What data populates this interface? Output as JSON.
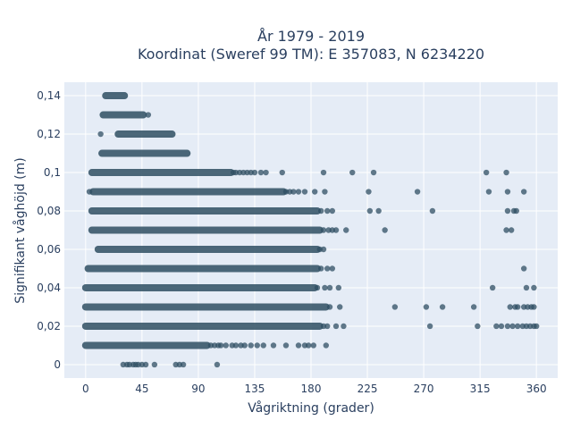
{
  "chart_data": {
    "type": "scatter",
    "title_lines": [
      "År 1979 - 2019",
      "Koordinat (Sweref 99 TM): E 357083, N 6234220"
    ],
    "xlabel": "Vågriktning (grader)",
    "ylabel": "Signifikant våghöjd (m)",
    "xlim": [
      -17,
      377
    ],
    "ylim": [
      -0.007,
      0.147
    ],
    "x_ticks": [
      0,
      45,
      90,
      135,
      180,
      225,
      270,
      315,
      360
    ],
    "x_tick_labels": [
      "0",
      "45",
      "90",
      "135",
      "180",
      "225",
      "270",
      "315",
      "360"
    ],
    "y_ticks": [
      0,
      0.02,
      0.04,
      0.06,
      0.08,
      0.1,
      0.12,
      0.14
    ],
    "y_tick_labels": [
      "0",
      "0,02",
      "0,04",
      "0,06",
      "0,08",
      "0,1",
      "0,12",
      "0,14"
    ],
    "grid": true,
    "marker_color": "#2f4f63",
    "background_color": "#e5ecf6",
    "bands": [
      {
        "y": 0.14,
        "segments": [
          [
            16,
            31
          ]
        ],
        "points": []
      },
      {
        "y": 0.13,
        "segments": [
          [
            14,
            46
          ]
        ],
        "points": [
          50
        ]
      },
      {
        "y": 0.12,
        "segments": [
          [
            26,
            69
          ]
        ],
        "points": [
          12
        ]
      },
      {
        "y": 0.11,
        "segments": [
          [
            13,
            81
          ]
        ],
        "points": []
      },
      {
        "y": 0.1,
        "segments": [
          [
            5,
            116
          ]
        ],
        "points": [
          118,
          120,
          123,
          126,
          129,
          132,
          135,
          140,
          144,
          157,
          190,
          213,
          230,
          320,
          336
        ]
      },
      {
        "y": 0.09,
        "segments": [
          [
            6,
            158
          ]
        ],
        "points": [
          3,
          160,
          163,
          166,
          170,
          175,
          183,
          191,
          226,
          265,
          322,
          337,
          350
        ]
      },
      {
        "y": 0.08,
        "segments": [
          [
            5,
            185
          ]
        ],
        "points": [
          188,
          193,
          197,
          227,
          234,
          277,
          337,
          342,
          344
        ]
      },
      {
        "y": 0.07,
        "segments": [
          [
            5,
            187
          ]
        ],
        "points": [
          190,
          194,
          197,
          200,
          208,
          239,
          336,
          340
        ]
      },
      {
        "y": 0.06,
        "segments": [
          [
            10,
            185
          ]
        ],
        "points": [
          187,
          190
        ]
      },
      {
        "y": 0.05,
        "segments": [
          [
            2,
            185
          ]
        ],
        "points": [
          188,
          193,
          197,
          350
        ]
      },
      {
        "y": 0.04,
        "segments": [
          [
            0,
            183
          ]
        ],
        "points": [
          185,
          191,
          195,
          202,
          325,
          352,
          358
        ]
      },
      {
        "y": 0.03,
        "segments": [
          [
            0,
            192
          ]
        ],
        "points": [
          195,
          203,
          247,
          272,
          285,
          310,
          339,
          343,
          345,
          350,
          353,
          356,
          358
        ]
      },
      {
        "y": 0.02,
        "segments": [
          [
            0,
            187
          ]
        ],
        "points": [
          190,
          193,
          200,
          206,
          275,
          313,
          328,
          332,
          337,
          341,
          345,
          349,
          352,
          355,
          358,
          360
        ]
      },
      {
        "y": 0.01,
        "segments": [
          [
            0,
            97
          ]
        ],
        "points": [
          100,
          103,
          106,
          108,
          112,
          117,
          120,
          124,
          127,
          132,
          137,
          142,
          150,
          160,
          170,
          175,
          178,
          182,
          192
        ]
      },
      {
        "y": 0.0,
        "segments": [],
        "points": [
          30,
          33,
          35,
          38,
          40,
          42,
          45,
          48,
          55,
          72,
          75,
          78,
          105
        ]
      }
    ]
  }
}
